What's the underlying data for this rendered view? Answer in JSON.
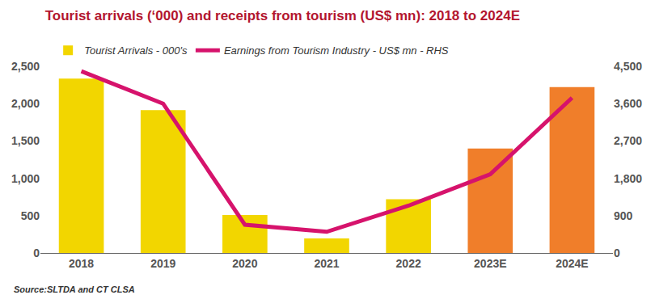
{
  "chart_data": {
    "type": "bar",
    "title": "Tourist arrivals (‘000) and receipts from tourism (US$ mn): 2018 to 2024E",
    "source": "Source:SLTDA and CT CLSA",
    "categories": [
      "2018",
      "2019",
      "2020",
      "2021",
      "2022",
      "2023E",
      "2024E"
    ],
    "series": [
      {
        "name": "Tourist Arrivals - 000's",
        "type": "bar",
        "colors": [
          "#f2d600",
          "#f2d600",
          "#f2d600",
          "#f2d600",
          "#f2d600",
          "#f07e2a",
          "#f07e2a"
        ],
        "values": [
          2334,
          1914,
          508,
          195,
          720,
          1400,
          2220
        ]
      },
      {
        "name": "Earnings from Tourism Industry - US$ mn - RHS",
        "type": "line",
        "color": "#d6136c",
        "axis": "y2",
        "values": [
          4380,
          3600,
          680,
          510,
          1140,
          1900,
          3740
        ]
      }
    ],
    "ylim": [
      0,
      2500
    ],
    "yticks": [
      0,
      500,
      {
        "value": 1000,
        "label": "1,000"
      },
      {
        "value": 1500,
        "label": "1,500"
      },
      {
        "value": 2000,
        "label": "2,000"
      },
      {
        "value": 2500,
        "label": "2,500"
      }
    ],
    "y2lim": [
      0,
      4500
    ],
    "y2ticks": [
      0,
      900,
      {
        "value": 1800,
        "label": "1,800"
      },
      {
        "value": 2700,
        "label": "2,700"
      },
      {
        "value": 3600,
        "label": "3,600"
      },
      {
        "value": 4500,
        "label": "4,500"
      }
    ],
    "grid": false,
    "legend": "top"
  }
}
